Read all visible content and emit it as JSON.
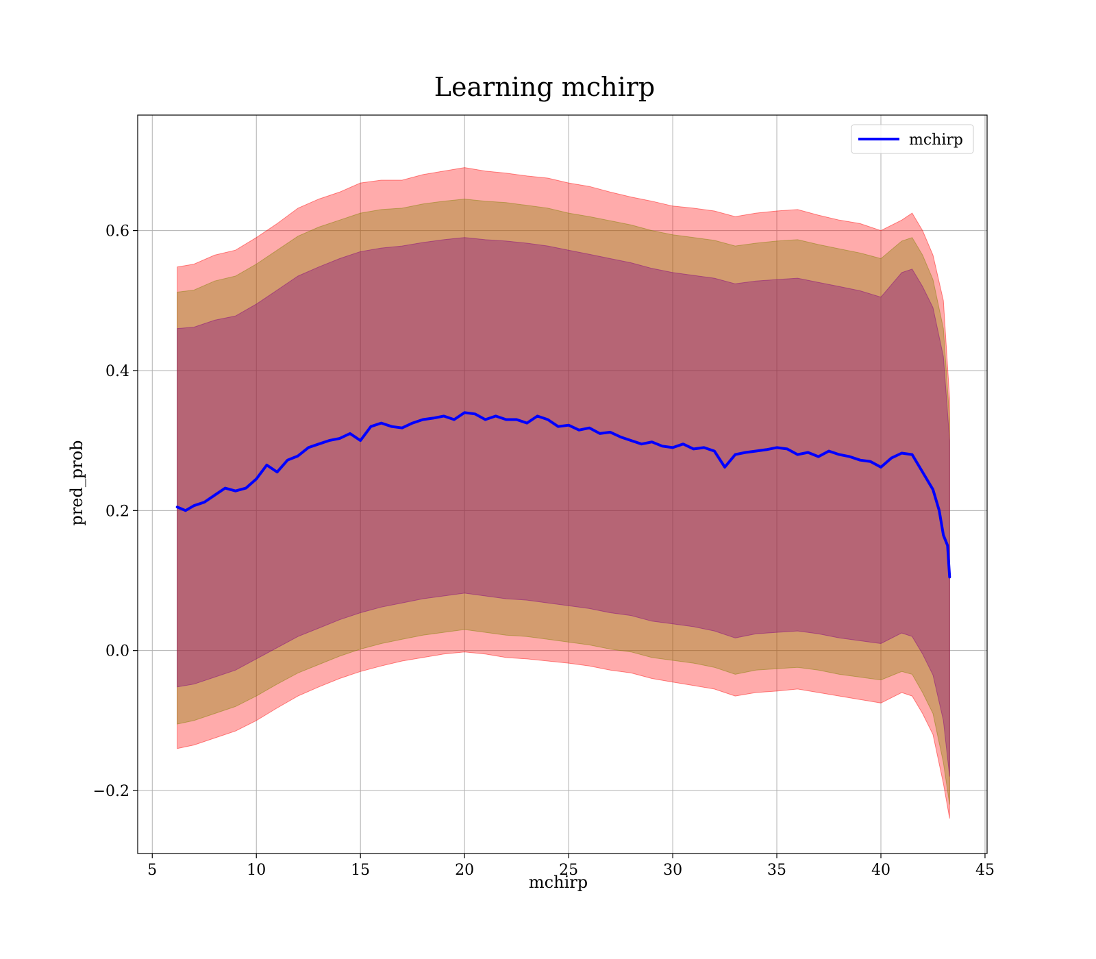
{
  "chart_data": {
    "type": "line",
    "title": "Learning mchirp",
    "xlabel": "mchirp",
    "ylabel": "pred_prob",
    "xlim": [
      4.3,
      45.1
    ],
    "ylim": [
      -0.29,
      0.765
    ],
    "xticks": [
      5,
      10,
      15,
      20,
      25,
      30,
      35,
      40,
      45
    ],
    "xtick_labels": [
      "5",
      "10",
      "15",
      "20",
      "25",
      "30",
      "35",
      "40",
      "45"
    ],
    "yticks": [
      -0.2,
      0.0,
      0.2,
      0.4,
      0.6
    ],
    "ytick_labels": [
      "−0.2",
      "0.0",
      "0.2",
      "0.4",
      "0.6"
    ],
    "grid": true,
    "legend_position": "top-right",
    "series": [
      {
        "name": "mchirp",
        "color": "#0000ff",
        "x": [
          6.2,
          6.6,
          7.0,
          7.5,
          8.0,
          8.5,
          9.0,
          9.5,
          10.0,
          10.5,
          11.0,
          11.5,
          12.0,
          12.5,
          13.0,
          13.5,
          14.0,
          14.5,
          15.0,
          15.5,
          16.0,
          16.5,
          17.0,
          17.5,
          18.0,
          18.5,
          19.0,
          19.5,
          20.0,
          20.5,
          21.0,
          21.5,
          22.0,
          22.5,
          23.0,
          23.5,
          24.0,
          24.5,
          25.0,
          25.5,
          26.0,
          26.5,
          27.0,
          27.5,
          28.0,
          28.5,
          29.0,
          29.5,
          30.0,
          30.5,
          31.0,
          31.5,
          32.0,
          32.5,
          33.0,
          33.5,
          34.0,
          34.5,
          35.0,
          35.5,
          36.0,
          36.5,
          37.0,
          37.5,
          38.0,
          38.5,
          39.0,
          39.5,
          40.0,
          40.5,
          41.0,
          41.5,
          42.0,
          42.5,
          42.8,
          43.0,
          43.2,
          43.3
        ],
        "values": [
          0.205,
          0.2,
          0.207,
          0.212,
          0.222,
          0.232,
          0.228,
          0.232,
          0.245,
          0.265,
          0.255,
          0.272,
          0.278,
          0.29,
          0.295,
          0.3,
          0.303,
          0.31,
          0.3,
          0.32,
          0.325,
          0.32,
          0.318,
          0.325,
          0.33,
          0.332,
          0.335,
          0.33,
          0.34,
          0.338,
          0.33,
          0.335,
          0.33,
          0.33,
          0.325,
          0.335,
          0.33,
          0.32,
          0.322,
          0.315,
          0.318,
          0.31,
          0.312,
          0.305,
          0.3,
          0.295,
          0.298,
          0.292,
          0.29,
          0.295,
          0.288,
          0.29,
          0.285,
          0.262,
          0.28,
          0.283,
          0.285,
          0.287,
          0.29,
          0.288,
          0.28,
          0.283,
          0.277,
          0.285,
          0.28,
          0.277,
          0.272,
          0.27,
          0.262,
          0.275,
          0.282,
          0.28,
          0.255,
          0.23,
          0.2,
          0.165,
          0.15,
          0.105
        ]
      }
    ],
    "bands": [
      {
        "color": "#ff0000",
        "opacity": 0.33,
        "x": [
          6.2,
          7.0,
          8.0,
          9.0,
          10.0,
          11.0,
          12.0,
          13.0,
          14.0,
          15.0,
          16.0,
          17.0,
          18.0,
          19.0,
          20.0,
          21.0,
          22.0,
          23.0,
          24.0,
          25.0,
          26.0,
          27.0,
          28.0,
          29.0,
          30.0,
          31.0,
          32.0,
          33.0,
          34.0,
          35.0,
          36.0,
          37.0,
          38.0,
          39.0,
          40.0,
          41.0,
          41.5,
          42.0,
          42.5,
          43.0,
          43.3
        ],
        "upper": [
          0.548,
          0.552,
          0.565,
          0.572,
          0.59,
          0.61,
          0.632,
          0.645,
          0.655,
          0.668,
          0.672,
          0.672,
          0.68,
          0.685,
          0.69,
          0.685,
          0.682,
          0.678,
          0.675,
          0.668,
          0.663,
          0.655,
          0.648,
          0.642,
          0.635,
          0.632,
          0.628,
          0.62,
          0.625,
          0.628,
          0.63,
          0.622,
          0.615,
          0.61,
          0.6,
          0.615,
          0.625,
          0.6,
          0.565,
          0.5,
          0.36
        ],
        "lower": [
          -0.14,
          -0.135,
          -0.125,
          -0.115,
          -0.1,
          -0.082,
          -0.065,
          -0.052,
          -0.04,
          -0.03,
          -0.022,
          -0.015,
          -0.01,
          -0.005,
          -0.002,
          -0.005,
          -0.01,
          -0.012,
          -0.015,
          -0.018,
          -0.022,
          -0.028,
          -0.032,
          -0.04,
          -0.045,
          -0.05,
          -0.055,
          -0.065,
          -0.06,
          -0.058,
          -0.055,
          -0.06,
          -0.065,
          -0.07,
          -0.075,
          -0.06,
          -0.065,
          -0.09,
          -0.12,
          -0.19,
          -0.24
        ]
      },
      {
        "color": "#808000",
        "opacity": 0.35,
        "x": [
          6.2,
          7.0,
          8.0,
          9.0,
          10.0,
          11.0,
          12.0,
          13.0,
          14.0,
          15.0,
          16.0,
          17.0,
          18.0,
          19.0,
          20.0,
          21.0,
          22.0,
          23.0,
          24.0,
          25.0,
          26.0,
          27.0,
          28.0,
          29.0,
          30.0,
          31.0,
          32.0,
          33.0,
          34.0,
          35.0,
          36.0,
          37.0,
          38.0,
          39.0,
          40.0,
          41.0,
          41.5,
          42.0,
          42.5,
          43.0,
          43.3
        ],
        "upper": [
          0.512,
          0.515,
          0.528,
          0.535,
          0.552,
          0.572,
          0.592,
          0.605,
          0.615,
          0.625,
          0.63,
          0.632,
          0.638,
          0.642,
          0.645,
          0.642,
          0.64,
          0.636,
          0.632,
          0.625,
          0.62,
          0.614,
          0.608,
          0.6,
          0.594,
          0.59,
          0.586,
          0.578,
          0.582,
          0.585,
          0.587,
          0.58,
          0.574,
          0.568,
          0.56,
          0.585,
          0.59,
          0.565,
          0.53,
          0.46,
          0.33
        ],
        "lower": [
          -0.105,
          -0.1,
          -0.09,
          -0.08,
          -0.065,
          -0.048,
          -0.032,
          -0.02,
          -0.008,
          0.002,
          0.01,
          0.016,
          0.022,
          0.026,
          0.03,
          0.026,
          0.022,
          0.02,
          0.016,
          0.012,
          0.008,
          0.002,
          -0.002,
          -0.01,
          -0.014,
          -0.018,
          -0.024,
          -0.034,
          -0.028,
          -0.026,
          -0.024,
          -0.028,
          -0.034,
          -0.038,
          -0.042,
          -0.03,
          -0.034,
          -0.06,
          -0.09,
          -0.16,
          -0.22
        ]
      },
      {
        "color": "#800080",
        "opacity": 0.35,
        "x": [
          6.2,
          7.0,
          8.0,
          9.0,
          10.0,
          11.0,
          12.0,
          13.0,
          14.0,
          15.0,
          16.0,
          17.0,
          18.0,
          19.0,
          20.0,
          21.0,
          22.0,
          23.0,
          24.0,
          25.0,
          26.0,
          27.0,
          28.0,
          29.0,
          30.0,
          31.0,
          32.0,
          33.0,
          34.0,
          35.0,
          36.0,
          37.0,
          38.0,
          39.0,
          40.0,
          41.0,
          41.5,
          42.0,
          42.5,
          43.0,
          43.3
        ],
        "upper": [
          0.46,
          0.462,
          0.472,
          0.478,
          0.495,
          0.515,
          0.535,
          0.548,
          0.56,
          0.57,
          0.575,
          0.578,
          0.583,
          0.587,
          0.59,
          0.587,
          0.585,
          0.582,
          0.578,
          0.572,
          0.566,
          0.56,
          0.554,
          0.546,
          0.54,
          0.536,
          0.532,
          0.524,
          0.528,
          0.53,
          0.532,
          0.526,
          0.52,
          0.514,
          0.505,
          0.54,
          0.545,
          0.52,
          0.49,
          0.42,
          0.3
        ],
        "lower": [
          -0.052,
          -0.048,
          -0.038,
          -0.028,
          -0.012,
          0.004,
          0.02,
          0.032,
          0.044,
          0.054,
          0.062,
          0.068,
          0.074,
          0.078,
          0.082,
          0.078,
          0.074,
          0.072,
          0.068,
          0.064,
          0.06,
          0.054,
          0.05,
          0.042,
          0.038,
          0.034,
          0.028,
          0.018,
          0.024,
          0.026,
          0.028,
          0.024,
          0.018,
          0.014,
          0.01,
          0.025,
          0.02,
          -0.005,
          -0.035,
          -0.1,
          -0.18
        ]
      }
    ]
  }
}
